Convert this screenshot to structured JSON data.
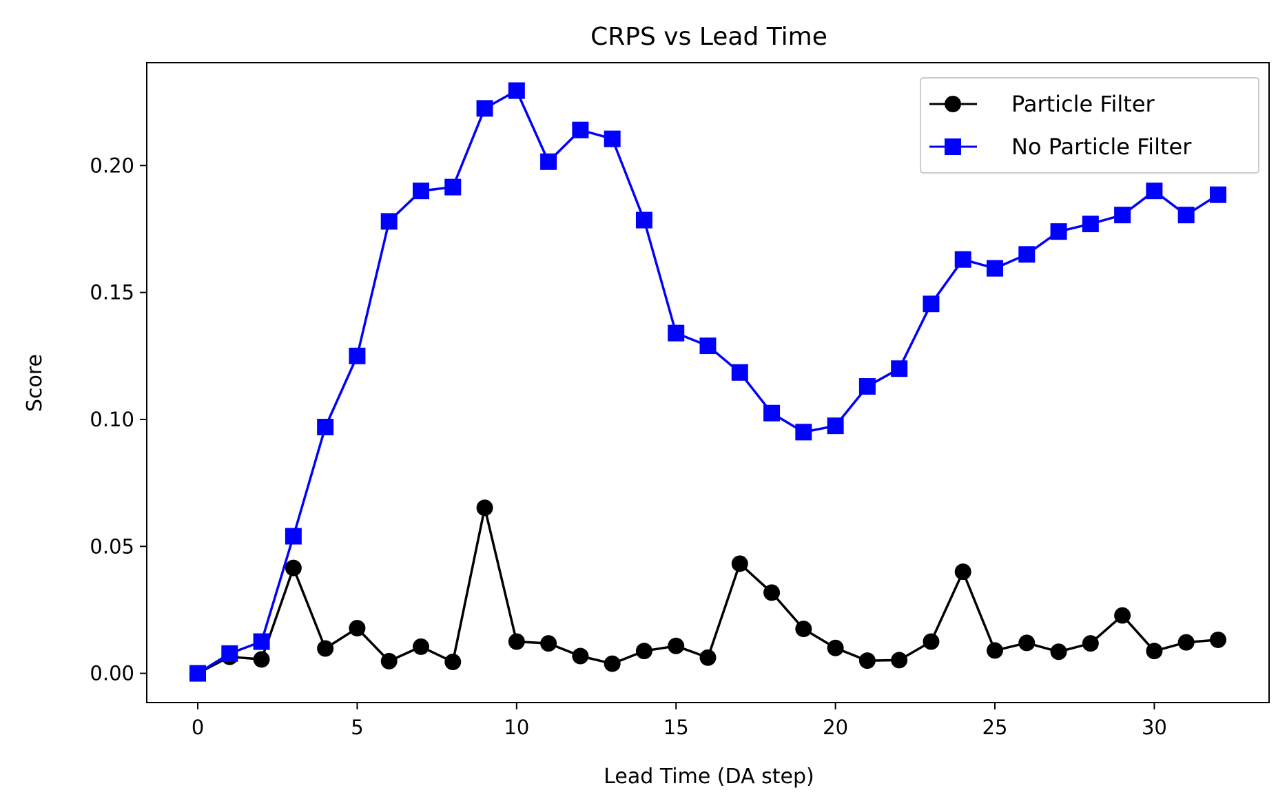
{
  "chart_data": {
    "type": "line",
    "title": "CRPS vs Lead Time",
    "xlabel": "Lead Time (DA step)",
    "ylabel": "Score",
    "xlim": [
      -1.6,
      33.6
    ],
    "ylim": [
      -0.0115,
      0.2405
    ],
    "xticks": [
      0,
      5,
      10,
      15,
      20,
      25,
      30
    ],
    "yticks": [
      0.0,
      0.05,
      0.1,
      0.15,
      0.2
    ],
    "xtick_labels": [
      "0",
      "5",
      "10",
      "15",
      "20",
      "25",
      "30"
    ],
    "ytick_labels": [
      "0.00",
      "0.05",
      "0.10",
      "0.15",
      "0.20"
    ],
    "grid": false,
    "legend": {
      "position": "top-right"
    },
    "x": [
      0,
      1,
      2,
      3,
      4,
      5,
      6,
      7,
      8,
      9,
      10,
      11,
      12,
      13,
      14,
      15,
      16,
      17,
      18,
      19,
      20,
      21,
      22,
      23,
      24,
      25,
      26,
      27,
      28,
      29,
      30,
      31,
      32
    ],
    "series": [
      {
        "name": "Particle Filter",
        "color": "#000000",
        "marker": "circle",
        "values": [
          0.0,
          0.0065,
          0.0055,
          0.0415,
          0.0098,
          0.0178,
          0.0048,
          0.0105,
          0.0045,
          0.0652,
          0.0125,
          0.0118,
          0.0068,
          0.0038,
          0.0088,
          0.0108,
          0.0062,
          0.0432,
          0.0318,
          0.0175,
          0.01,
          0.005,
          0.0052,
          0.0125,
          0.04,
          0.009,
          0.012,
          0.0085,
          0.0118,
          0.0228,
          0.0088,
          0.0122,
          0.0132
        ]
      },
      {
        "name": "No Particle Filter",
        "color": "#0000ff",
        "marker": "square",
        "values": [
          0.0,
          0.0078,
          0.0125,
          0.054,
          0.097,
          0.125,
          0.178,
          0.19,
          0.1915,
          0.2225,
          0.2295,
          0.2015,
          0.214,
          0.2105,
          0.1785,
          0.134,
          0.129,
          0.1185,
          0.1025,
          0.095,
          0.0975,
          0.113,
          0.12,
          0.1455,
          0.163,
          0.1595,
          0.165,
          0.174,
          0.177,
          0.1805,
          0.19,
          0.1805,
          0.1885
        ]
      }
    ]
  }
}
